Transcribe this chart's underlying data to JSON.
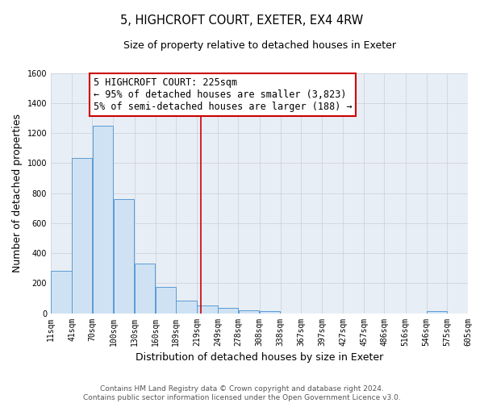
{
  "title": "5, HIGHCROFT COURT, EXETER, EX4 4RW",
  "subtitle": "Size of property relative to detached houses in Exeter",
  "xlabel": "Distribution of detached houses by size in Exeter",
  "ylabel": "Number of detached properties",
  "bin_edges": [
    11,
    41,
    70,
    100,
    130,
    160,
    189,
    219,
    249,
    278,
    308,
    338,
    367,
    397,
    427,
    457,
    486,
    516,
    546,
    575,
    605
  ],
  "bin_counts": [
    280,
    1035,
    1250,
    760,
    330,
    175,
    85,
    50,
    37,
    20,
    15,
    0,
    0,
    0,
    0,
    0,
    0,
    0,
    15,
    0
  ],
  "bar_facecolor": "#cfe2f3",
  "bar_edgecolor": "#5b9bd5",
  "grid_color": "#c8cfd8",
  "bg_color": "#e8eef5",
  "vline_x": 225,
  "vline_color": "#cc0000",
  "annotation_line1": "5 HIGHCROFT COURT: 225sqm",
  "annotation_line2": "← 95% of detached houses are smaller (3,823)",
  "annotation_line3": "5% of semi-detached houses are larger (188) →",
  "annotation_box_edgecolor": "#cc0000",
  "annotation_box_facecolor": "#ffffff",
  "ylim": [
    0,
    1600
  ],
  "yticks": [
    0,
    200,
    400,
    600,
    800,
    1000,
    1200,
    1400,
    1600
  ],
  "xtick_labels": [
    "11sqm",
    "41sqm",
    "70sqm",
    "100sqm",
    "130sqm",
    "160sqm",
    "189sqm",
    "219sqm",
    "249sqm",
    "278sqm",
    "308sqm",
    "338sqm",
    "367sqm",
    "397sqm",
    "427sqm",
    "457sqm",
    "486sqm",
    "516sqm",
    "546sqm",
    "575sqm",
    "605sqm"
  ],
  "footer_line1": "Contains HM Land Registry data © Crown copyright and database right 2024.",
  "footer_line2": "Contains public sector information licensed under the Open Government Licence v3.0.",
  "title_fontsize": 10.5,
  "subtitle_fontsize": 9,
  "axis_label_fontsize": 9,
  "tick_fontsize": 7,
  "annotation_fontsize": 8.5,
  "footer_fontsize": 6.5
}
